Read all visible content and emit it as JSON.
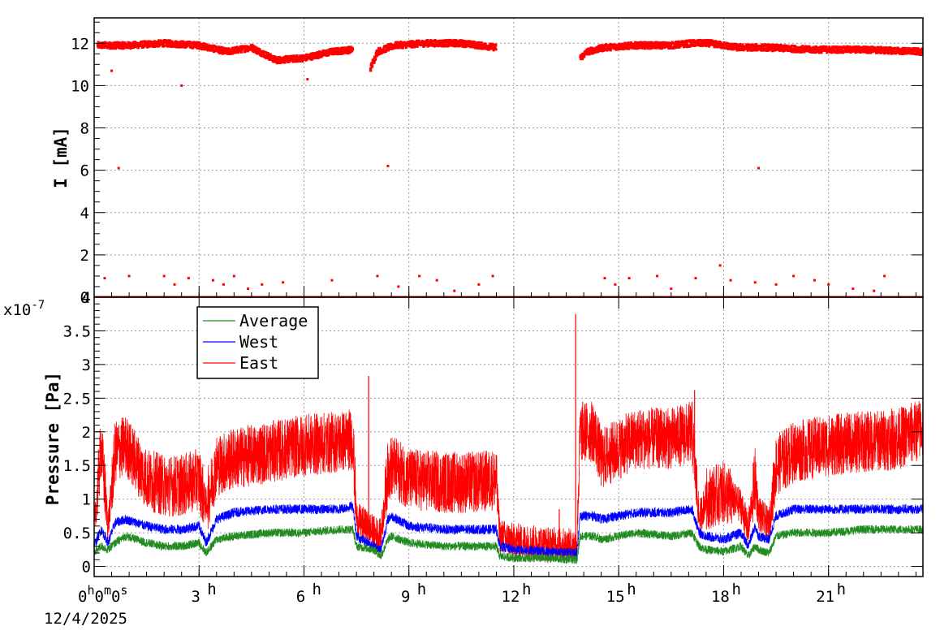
{
  "chart_data": [
    {
      "type": "scatter",
      "ylabel": "I [mA]",
      "ylim": [
        0,
        13.2
      ],
      "yticks": [
        "0",
        "2",
        "4",
        "6",
        "8",
        "10",
        "12"
      ],
      "x_unit": "hours since 0h0m0s 12/4/2025",
      "xlim": [
        0,
        23.7
      ],
      "grid": true,
      "color": "#ff0000",
      "segments": [
        {
          "x": [
            0.1,
            0.5,
            1.0,
            2.0,
            3.0,
            3.8,
            4.5,
            5.2,
            6.0,
            6.8,
            7.4
          ],
          "y": [
            11.9,
            11.9,
            11.9,
            12.0,
            11.9,
            11.6,
            11.8,
            11.2,
            11.3,
            11.6,
            11.7
          ]
        },
        {
          "x": [
            7.9,
            8.1,
            8.6,
            9.5,
            10.5,
            11.5
          ],
          "y": [
            10.8,
            11.6,
            11.9,
            12.0,
            12.0,
            11.8
          ]
        },
        {
          "x": [
            13.9,
            14.1,
            14.6,
            15.5,
            16.5,
            17.1,
            17.6,
            18.4,
            19.2,
            20.5,
            22.0,
            23.7
          ],
          "y": [
            11.3,
            11.6,
            11.8,
            11.9,
            11.9,
            12.0,
            12.0,
            11.8,
            11.8,
            11.7,
            11.7,
            11.6
          ]
        }
      ],
      "outliers": [
        {
          "x": 0.5,
          "y": 10.7
        },
        {
          "x": 0.7,
          "y": 6.1
        },
        {
          "x": 2.5,
          "y": 10.0
        },
        {
          "x": 6.1,
          "y": 10.3
        },
        {
          "x": 8.4,
          "y": 6.2
        },
        {
          "x": 19.0,
          "y": 6.1
        }
      ],
      "baseline_y": 0.0,
      "sparse_points": [
        {
          "x": 0.3,
          "y": 0.9
        },
        {
          "x": 1.0,
          "y": 1.0
        },
        {
          "x": 2.0,
          "y": 1.0
        },
        {
          "x": 2.3,
          "y": 0.6
        },
        {
          "x": 2.7,
          "y": 0.9
        },
        {
          "x": 3.4,
          "y": 0.8
        },
        {
          "x": 3.7,
          "y": 0.6
        },
        {
          "x": 4.0,
          "y": 1.0
        },
        {
          "x": 4.4,
          "y": 0.4
        },
        {
          "x": 4.8,
          "y": 0.6
        },
        {
          "x": 5.4,
          "y": 0.7
        },
        {
          "x": 6.8,
          "y": 0.8
        },
        {
          "x": 8.1,
          "y": 1.0
        },
        {
          "x": 8.7,
          "y": 0.5
        },
        {
          "x": 9.3,
          "y": 1.0
        },
        {
          "x": 9.8,
          "y": 0.8
        },
        {
          "x": 10.3,
          "y": 0.3
        },
        {
          "x": 11.0,
          "y": 0.6
        },
        {
          "x": 11.4,
          "y": 1.0
        },
        {
          "x": 14.6,
          "y": 0.9
        },
        {
          "x": 14.9,
          "y": 0.6
        },
        {
          "x": 15.3,
          "y": 0.9
        },
        {
          "x": 16.1,
          "y": 1.0
        },
        {
          "x": 16.5,
          "y": 0.4
        },
        {
          "x": 17.2,
          "y": 0.9
        },
        {
          "x": 17.9,
          "y": 1.5
        },
        {
          "x": 18.2,
          "y": 0.8
        },
        {
          "x": 18.9,
          "y": 0.7
        },
        {
          "x": 19.5,
          "y": 0.6
        },
        {
          "x": 20.0,
          "y": 1.0
        },
        {
          "x": 20.6,
          "y": 0.8
        },
        {
          "x": 21.0,
          "y": 0.6
        },
        {
          "x": 21.7,
          "y": 0.4
        },
        {
          "x": 22.3,
          "y": 0.3
        },
        {
          "x": 22.6,
          "y": 1.0
        }
      ]
    },
    {
      "type": "line",
      "ylabel": "Pressure [Pa]",
      "y_multiplier": "x10",
      "y_exponent": "-7",
      "ylim": [
        -0.15,
        4.0
      ],
      "yticks": [
        "0",
        "0.5",
        "1",
        "1.5",
        "2",
        "2.5",
        "3",
        "3.5",
        "4"
      ],
      "xlim": [
        0,
        23.7
      ],
      "xticks": [
        "3",
        "6",
        "9",
        "12",
        "15",
        "18",
        "21"
      ],
      "x_origin_label": [
        "0",
        "0",
        "0"
      ],
      "time_unit_marks": [
        "h",
        "m",
        "s"
      ],
      "start_date": "12/4/2025",
      "grid": true,
      "legend_position": "top-left",
      "series": [
        {
          "name": "Average",
          "color": "#228B22",
          "noise": 0.08,
          "x": [
            0.0,
            0.2,
            0.4,
            0.6,
            0.9,
            1.5,
            2.0,
            2.5,
            3.0,
            3.2,
            3.5,
            4.0,
            5.0,
            6.0,
            7.0,
            7.4,
            7.5,
            8.0,
            8.2,
            8.4,
            8.5,
            9.0,
            10.0,
            11.0,
            11.5,
            11.6,
            12.0,
            13.0,
            13.8,
            13.9,
            14.3,
            14.5,
            15.5,
            16.5,
            17.1,
            17.3,
            17.5,
            18.0,
            18.5,
            18.7,
            18.9,
            19.0,
            19.3,
            19.5,
            20.0,
            21.0,
            22.0,
            23.0,
            23.7
          ],
          "y": [
            0.2,
            0.3,
            0.25,
            0.35,
            0.45,
            0.35,
            0.3,
            0.3,
            0.35,
            0.2,
            0.4,
            0.45,
            0.5,
            0.5,
            0.55,
            0.55,
            0.3,
            0.25,
            0.15,
            0.4,
            0.45,
            0.35,
            0.3,
            0.3,
            0.3,
            0.15,
            0.13,
            0.12,
            0.1,
            0.45,
            0.45,
            0.4,
            0.5,
            0.45,
            0.5,
            0.3,
            0.25,
            0.22,
            0.3,
            0.15,
            0.3,
            0.25,
            0.2,
            0.45,
            0.5,
            0.5,
            0.55,
            0.55,
            0.55
          ]
        },
        {
          "name": "West",
          "color": "#0000ff",
          "noise": 0.09,
          "x": [
            0.0,
            0.2,
            0.4,
            0.6,
            0.9,
            1.5,
            2.0,
            2.5,
            3.0,
            3.2,
            3.5,
            4.0,
            5.0,
            6.0,
            7.0,
            7.4,
            7.5,
            8.0,
            8.2,
            8.4,
            8.5,
            9.0,
            10.0,
            11.0,
            11.5,
            11.6,
            12.0,
            13.0,
            13.8,
            13.9,
            14.3,
            14.5,
            15.5,
            16.5,
            17.1,
            17.3,
            17.5,
            18.0,
            18.5,
            18.7,
            18.9,
            19.0,
            19.3,
            19.5,
            20.0,
            21.0,
            22.0,
            23.0,
            23.7
          ],
          "y": [
            0.3,
            0.55,
            0.35,
            0.65,
            0.7,
            0.6,
            0.55,
            0.55,
            0.6,
            0.35,
            0.7,
            0.8,
            0.85,
            0.85,
            0.85,
            0.9,
            0.45,
            0.3,
            0.25,
            0.7,
            0.75,
            0.6,
            0.55,
            0.55,
            0.55,
            0.3,
            0.25,
            0.22,
            0.2,
            0.75,
            0.75,
            0.7,
            0.8,
            0.8,
            0.85,
            0.5,
            0.45,
            0.4,
            0.5,
            0.3,
            0.6,
            0.45,
            0.4,
            0.75,
            0.85,
            0.85,
            0.85,
            0.85,
            0.85
          ]
        },
        {
          "name": "East",
          "color": "#ff0000",
          "noise": 0.33,
          "x": [
            0.0,
            0.2,
            0.4,
            0.6,
            0.9,
            1.5,
            2.0,
            2.5,
            3.0,
            3.2,
            3.5,
            4.0,
            5.0,
            6.0,
            7.0,
            7.4,
            7.5,
            8.0,
            8.2,
            8.4,
            8.5,
            9.0,
            10.0,
            11.0,
            11.5,
            11.6,
            12.0,
            13.0,
            13.8,
            13.9,
            14.3,
            14.5,
            15.5,
            16.5,
            17.1,
            17.3,
            17.5,
            18.0,
            18.5,
            18.7,
            18.9,
            19.0,
            19.3,
            19.5,
            20.0,
            21.0,
            22.0,
            23.0,
            23.7
          ],
          "y": [
            0.5,
            1.8,
            0.6,
            1.7,
            1.8,
            1.3,
            1.2,
            1.2,
            1.3,
            0.9,
            1.5,
            1.6,
            1.7,
            1.8,
            1.85,
            1.9,
            0.7,
            0.5,
            0.45,
            1.4,
            1.5,
            1.3,
            1.25,
            1.25,
            1.3,
            0.45,
            0.38,
            0.33,
            0.3,
            2.0,
            2.0,
            1.6,
            1.9,
            1.9,
            2.0,
            0.7,
            1.0,
            1.1,
            0.9,
            0.55,
            1.3,
            0.8,
            0.6,
            1.5,
            1.7,
            1.8,
            1.85,
            1.9,
            2.05
          ]
        }
      ],
      "spikes": [
        {
          "x": 7.85,
          "y": 2.83,
          "series": "East"
        },
        {
          "x": 13.77,
          "y": 3.75,
          "series": "East"
        },
        {
          "x": 17.17,
          "y": 2.62,
          "series": "East"
        },
        {
          "x": 13.3,
          "y": 0.85,
          "series": "East"
        }
      ]
    }
  ]
}
